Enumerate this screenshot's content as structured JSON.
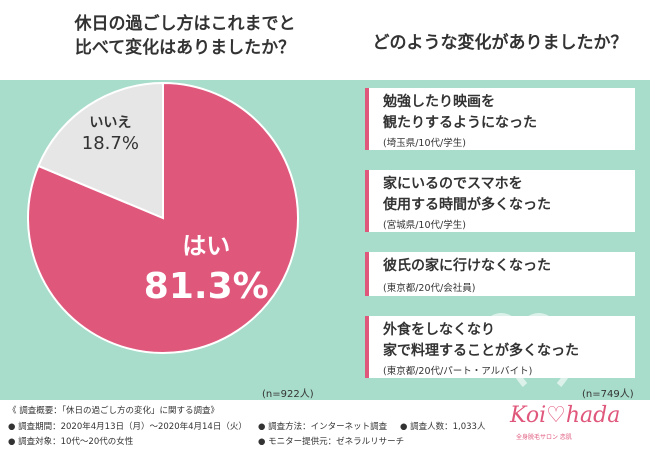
{
  "header": {
    "question_left_line1": "休日の過ごし方はこれまでと",
    "question_left_line2": "比べて変化はありましたか？",
    "question_right": "どのような変化がありましたか？"
  },
  "chart_data": {
    "type": "pie",
    "slices": [
      {
        "label": "はい",
        "value": 81.3,
        "value_label": "81.3%",
        "color": "#e0577c"
      },
      {
        "label": "いいえ",
        "value": 18.7,
        "value_label": "18.7%",
        "color": "#e6e6e6"
      }
    ],
    "note": "(n=922人)"
  },
  "changes": {
    "note": "(n=749人)",
    "items": [
      {
        "line1": "勉強したり映画を",
        "line2": "観たりするようになった",
        "who": "(埼玉県/10代/学生)"
      },
      {
        "line1": "家にいるのでスマホを",
        "line2": "使用する時間が多くなった",
        "who": "(宮城県/10代/学生)"
      },
      {
        "line1": "彼氏の家に行けなくなった",
        "line2": "",
        "who": "(東京都/20代/会社員)"
      },
      {
        "line1": "外食をしなくなり",
        "line2": "家で料理することが多くなった",
        "who": "(東京都/20代/パート・アルバイト)"
      }
    ]
  },
  "footer": {
    "title": "《 調査概要：「休日の過ごし方の変化」に関する調査》",
    "period": "● 調査期間：2020年4月13日（月）〜2020年4月14日（火）",
    "target": "● 調査対象：10代〜20代の女性",
    "method": "● 調査方法：インターネット調査",
    "provider": "● モニター提供元：ゼネラルリサーチ",
    "count": "● 調査人数：1,033人"
  },
  "logo": {
    "text": "Koi♡hada",
    "sub": "全身脱毛サロン 恋肌"
  },
  "colors": {
    "accent": "#e0577c",
    "background": "#a8dccb",
    "no_slice": "#e6e6e6"
  }
}
